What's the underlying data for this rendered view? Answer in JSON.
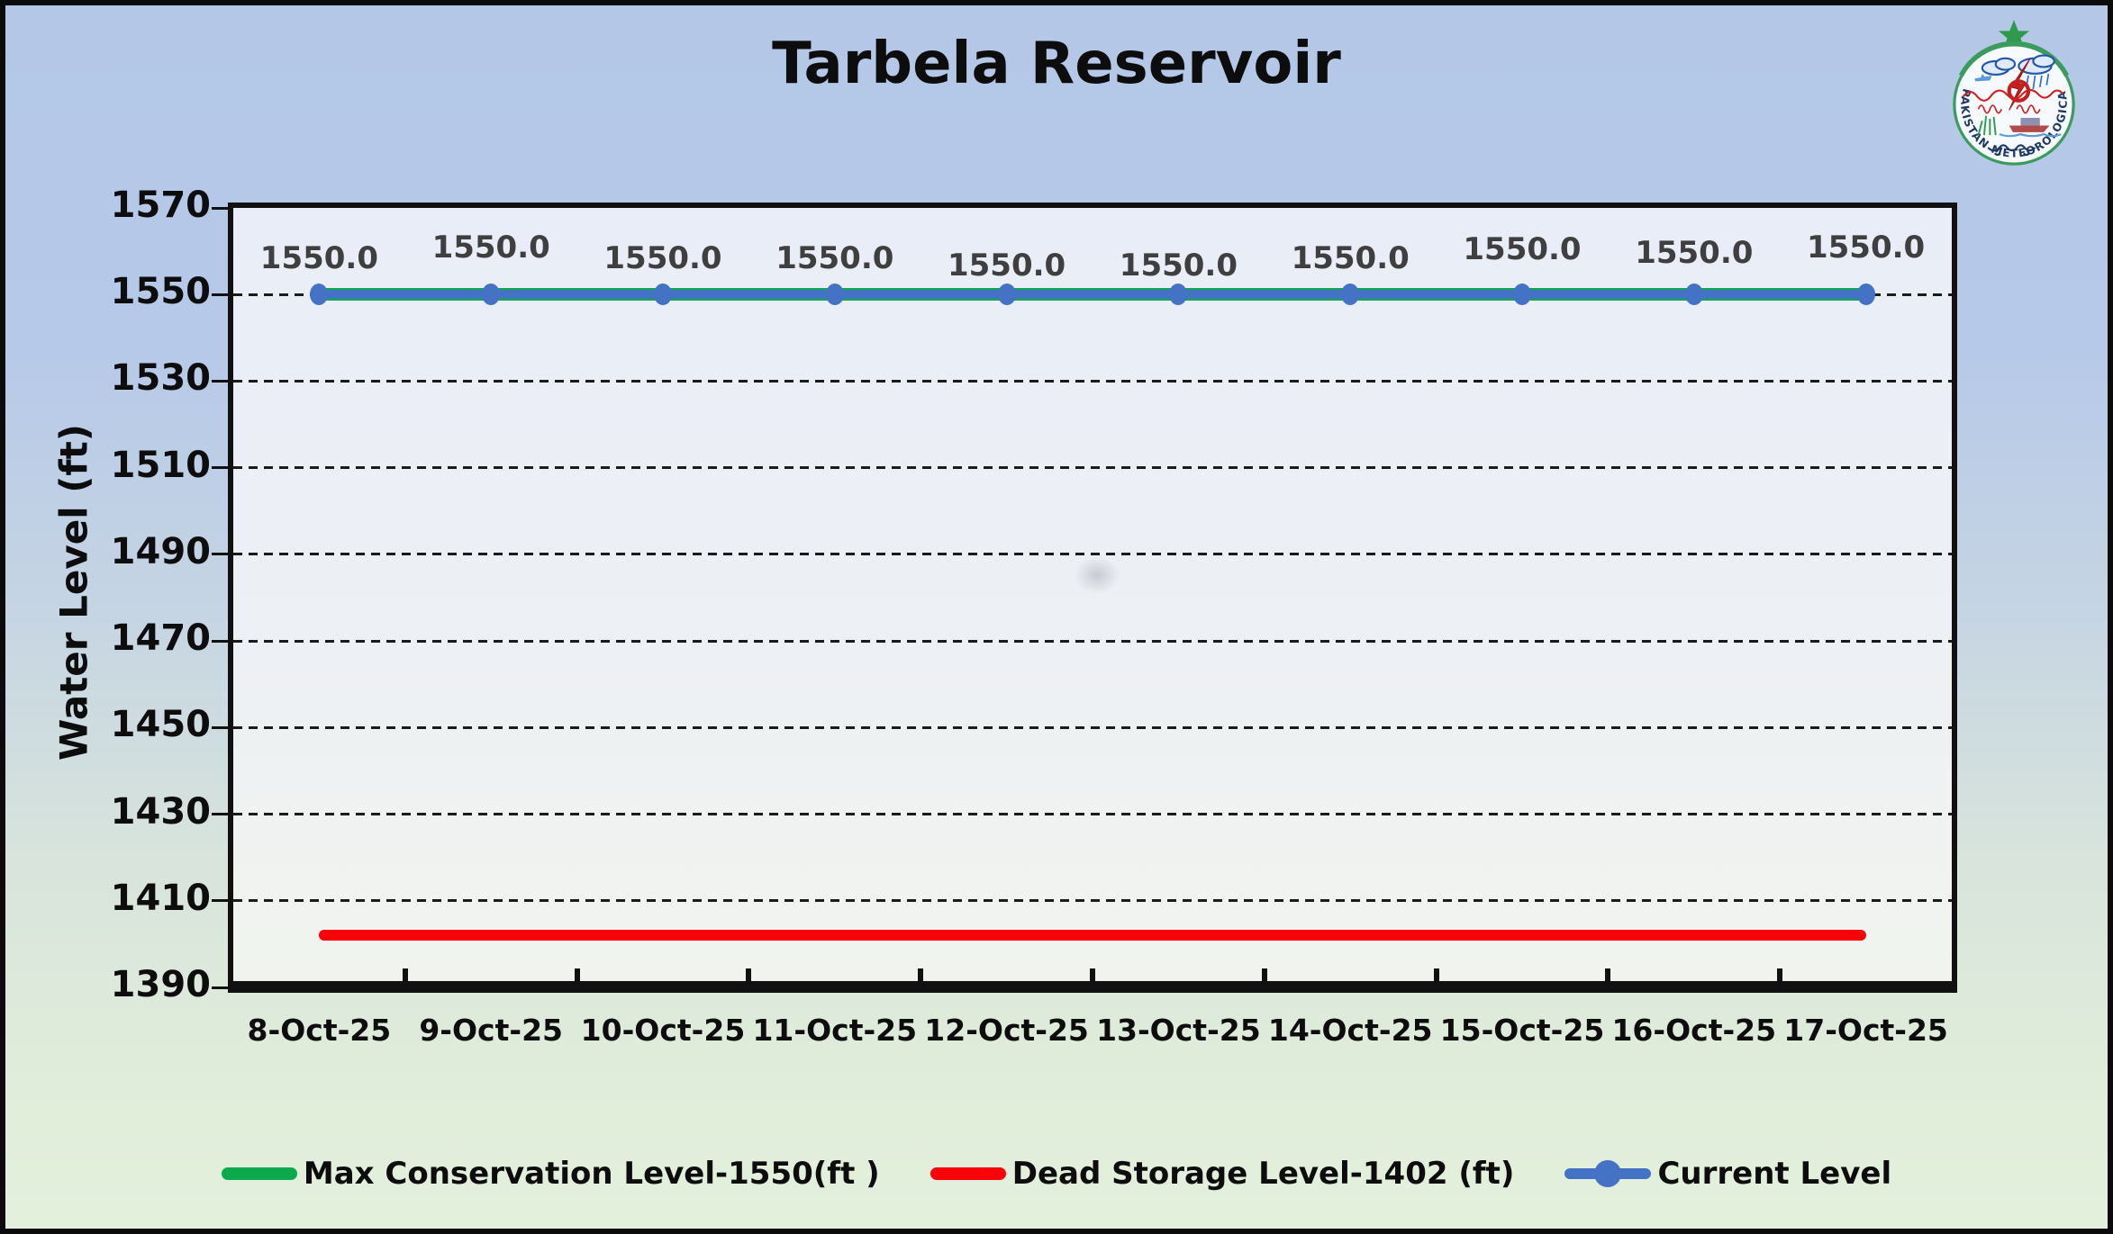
{
  "page": {
    "title": "Tarbela Reservoir"
  },
  "logo": {
    "name": "Pakistan Meteorological Department emblem",
    "ring_text": "PAKISTAN METEOROLOGICAL DEPARTMENT"
  },
  "colors": {
    "current_level": "#4472c4",
    "dead_storage": "#fb0107",
    "max_conservation": "#0ca94f",
    "axis_black": "#111111",
    "data_label_gray": "#3f3f3f",
    "bg_top_blue": "#b4c7e7",
    "bg_bottom_green": "#e3f0dc"
  },
  "chart_data": {
    "type": "line",
    "title": "Tarbela Reservoir",
    "xlabel": "",
    "ylabel": "Water Level (ft)",
    "ylim": [
      1390,
      1570
    ],
    "yticks": [
      1390,
      1410,
      1430,
      1450,
      1470,
      1490,
      1510,
      1530,
      1550,
      1570
    ],
    "grid": "dashed-horizontal",
    "legend_position": "bottom",
    "categories": [
      "8-Oct-25",
      "9-Oct-25",
      "10-Oct-25",
      "11-Oct-25",
      "12-Oct-25",
      "13-Oct-25",
      "14-Oct-25",
      "15-Oct-25",
      "16-Oct-25",
      "17-Oct-25"
    ],
    "series": [
      {
        "name": "Max Conservation Level-1550(ft )",
        "color": "#0ca94f",
        "marker": "none",
        "values": [
          1550,
          1550,
          1550,
          1550,
          1550,
          1550,
          1550,
          1550,
          1550,
          1550
        ]
      },
      {
        "name": "Dead Storage Level-1402 (ft)",
        "color": "#fb0107",
        "marker": "none",
        "values": [
          1402,
          1402,
          1402,
          1402,
          1402,
          1402,
          1402,
          1402,
          1402,
          1402
        ]
      },
      {
        "name": "Current Level",
        "color": "#4472c4",
        "marker": "circle",
        "values": [
          1550.0,
          1550.0,
          1550.0,
          1550.0,
          1550.0,
          1550.0,
          1550.0,
          1550.0,
          1550.0,
          1550.0
        ],
        "data_labels": [
          "1550.0",
          "1550.0",
          "1550.0",
          "1550.0",
          "1550.0",
          "1550.0",
          "1550.0",
          "1550.0",
          "1550.0",
          "1550.0"
        ]
      }
    ]
  }
}
